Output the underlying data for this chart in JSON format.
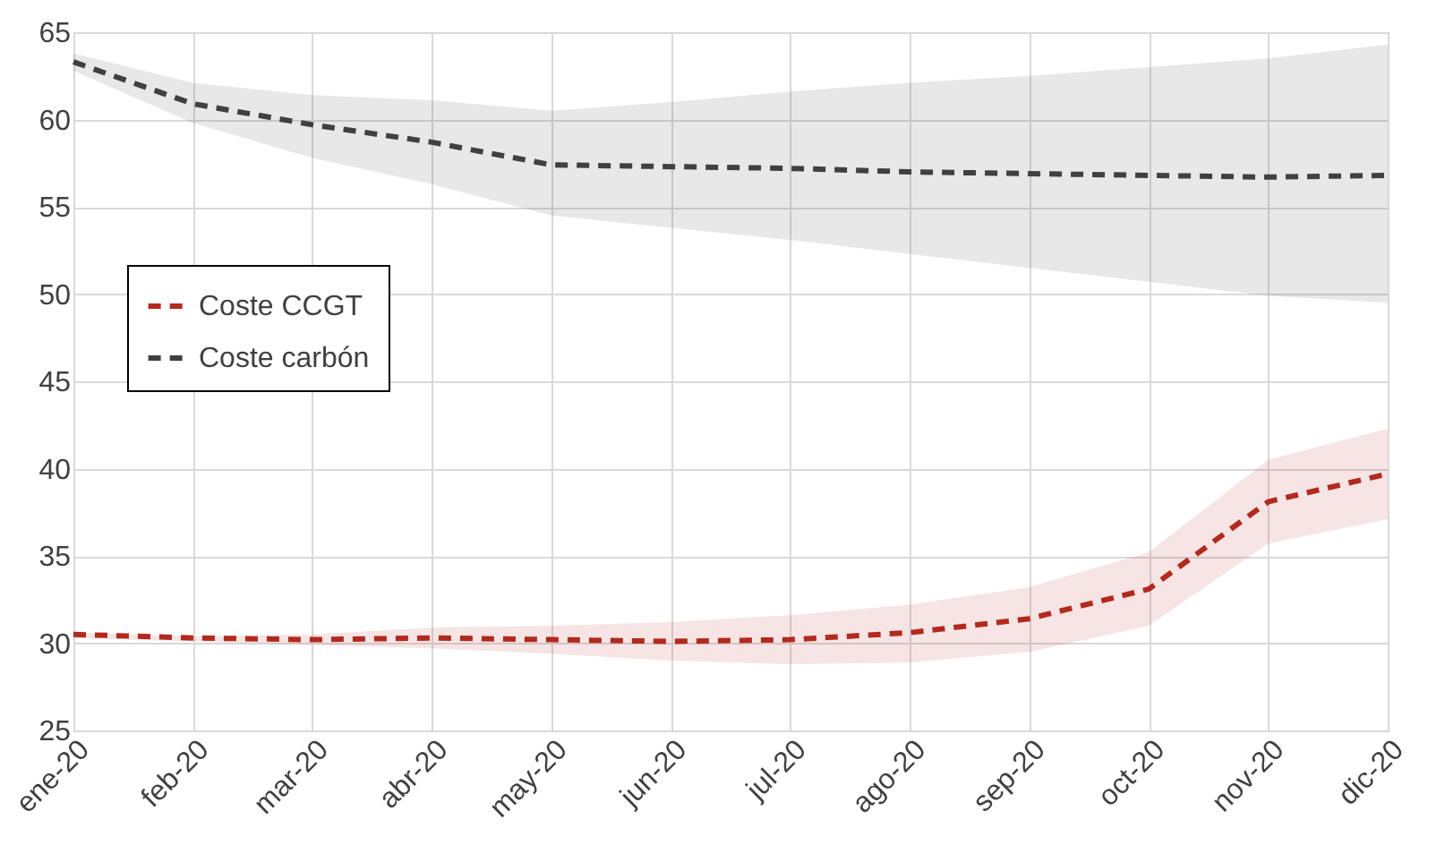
{
  "chart_data": {
    "type": "line",
    "categories": [
      "ene-20",
      "feb-20",
      "mar-20",
      "abr-20",
      "may-20",
      "jun-20",
      "jul-20",
      "ago-20",
      "sep-20",
      "oct-20",
      "nov-20",
      "dic-20"
    ],
    "series": [
      {
        "name": "Coste CCGT",
        "color": "#b22a1e",
        "values": [
          30.5,
          30.3,
          30.2,
          30.3,
          30.2,
          30.1,
          30.2,
          30.6,
          31.4,
          33.1,
          38.1,
          39.7
        ],
        "lower": [
          30.3,
          30.1,
          29.9,
          29.7,
          29.4,
          29.0,
          28.8,
          28.9,
          29.5,
          31.0,
          35.7,
          37.1
        ],
        "upper": [
          30.6,
          30.4,
          30.5,
          30.9,
          31.0,
          31.2,
          31.6,
          32.2,
          33.2,
          35.2,
          40.5,
          42.3
        ]
      },
      {
        "name": "Coste carbón",
        "color": "#404040",
        "values": [
          63.3,
          60.9,
          59.7,
          58.7,
          57.4,
          57.3,
          57.2,
          57.0,
          56.9,
          56.8,
          56.7,
          56.8
        ],
        "lower": [
          62.8,
          59.8,
          57.8,
          56.3,
          54.5,
          53.8,
          53.1,
          52.3,
          51.5,
          50.7,
          49.9,
          49.5
        ],
        "upper": [
          63.8,
          62.1,
          61.4,
          61.1,
          60.5,
          61.0,
          61.6,
          62.1,
          62.5,
          63.0,
          63.5,
          64.3
        ]
      }
    ],
    "ylim": [
      25,
      65
    ],
    "yticks": [
      25,
      30,
      35,
      40,
      45,
      50,
      55,
      60,
      65
    ],
    "grid": true,
    "legend": "left",
    "line_style": "dashed",
    "marker": "none"
  }
}
